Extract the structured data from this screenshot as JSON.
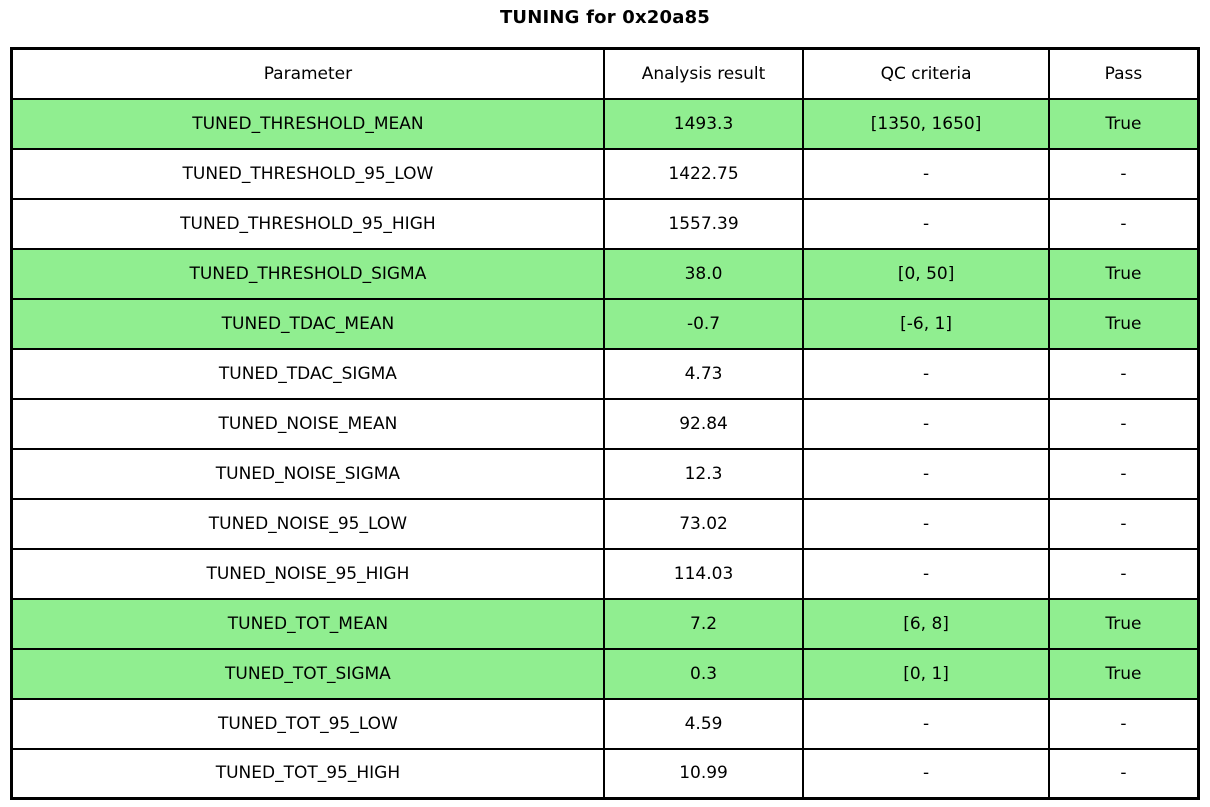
{
  "chart_data": {
    "type": "table",
    "title": "TUNING for 0x20a85",
    "columns": [
      "Parameter",
      "Analysis result",
      "QC criteria",
      "Pass"
    ],
    "rows": [
      {
        "parameter": "TUNED_THRESHOLD_MEAN",
        "analysis_result": "1493.3",
        "qc_criteria": "[1350, 1650]",
        "pass": "True",
        "highlight": true
      },
      {
        "parameter": "TUNED_THRESHOLD_95_LOW",
        "analysis_result": "1422.75",
        "qc_criteria": "-",
        "pass": "-",
        "highlight": false
      },
      {
        "parameter": "TUNED_THRESHOLD_95_HIGH",
        "analysis_result": "1557.39",
        "qc_criteria": "-",
        "pass": "-",
        "highlight": false
      },
      {
        "parameter": "TUNED_THRESHOLD_SIGMA",
        "analysis_result": "38.0",
        "qc_criteria": "[0, 50]",
        "pass": "True",
        "highlight": true
      },
      {
        "parameter": "TUNED_TDAC_MEAN",
        "analysis_result": "-0.7",
        "qc_criteria": "[-6, 1]",
        "pass": "True",
        "highlight": true
      },
      {
        "parameter": "TUNED_TDAC_SIGMA",
        "analysis_result": "4.73",
        "qc_criteria": "-",
        "pass": "-",
        "highlight": false
      },
      {
        "parameter": "TUNED_NOISE_MEAN",
        "analysis_result": "92.84",
        "qc_criteria": "-",
        "pass": "-",
        "highlight": false
      },
      {
        "parameter": "TUNED_NOISE_SIGMA",
        "analysis_result": "12.3",
        "qc_criteria": "-",
        "pass": "-",
        "highlight": false
      },
      {
        "parameter": "TUNED_NOISE_95_LOW",
        "analysis_result": "73.02",
        "qc_criteria": "-",
        "pass": "-",
        "highlight": false
      },
      {
        "parameter": "TUNED_NOISE_95_HIGH",
        "analysis_result": "114.03",
        "qc_criteria": "-",
        "pass": "-",
        "highlight": false
      },
      {
        "parameter": "TUNED_TOT_MEAN",
        "analysis_result": "7.2",
        "qc_criteria": "[6, 8]",
        "pass": "True",
        "highlight": true
      },
      {
        "parameter": "TUNED_TOT_SIGMA",
        "analysis_result": "0.3",
        "qc_criteria": "[0, 1]",
        "pass": "True",
        "highlight": true
      },
      {
        "parameter": "TUNED_TOT_95_LOW",
        "analysis_result": "4.59",
        "qc_criteria": "-",
        "pass": "-",
        "highlight": false
      },
      {
        "parameter": "TUNED_TOT_95_HIGH",
        "analysis_result": "10.99",
        "qc_criteria": "-",
        "pass": "-",
        "highlight": false
      }
    ],
    "layout": {
      "highlight_color": "#90ee90",
      "header_background": "#ffffff",
      "border_color": "#000000",
      "background": "#ffffff",
      "legend": "off",
      "grid": "table-borders"
    }
  }
}
